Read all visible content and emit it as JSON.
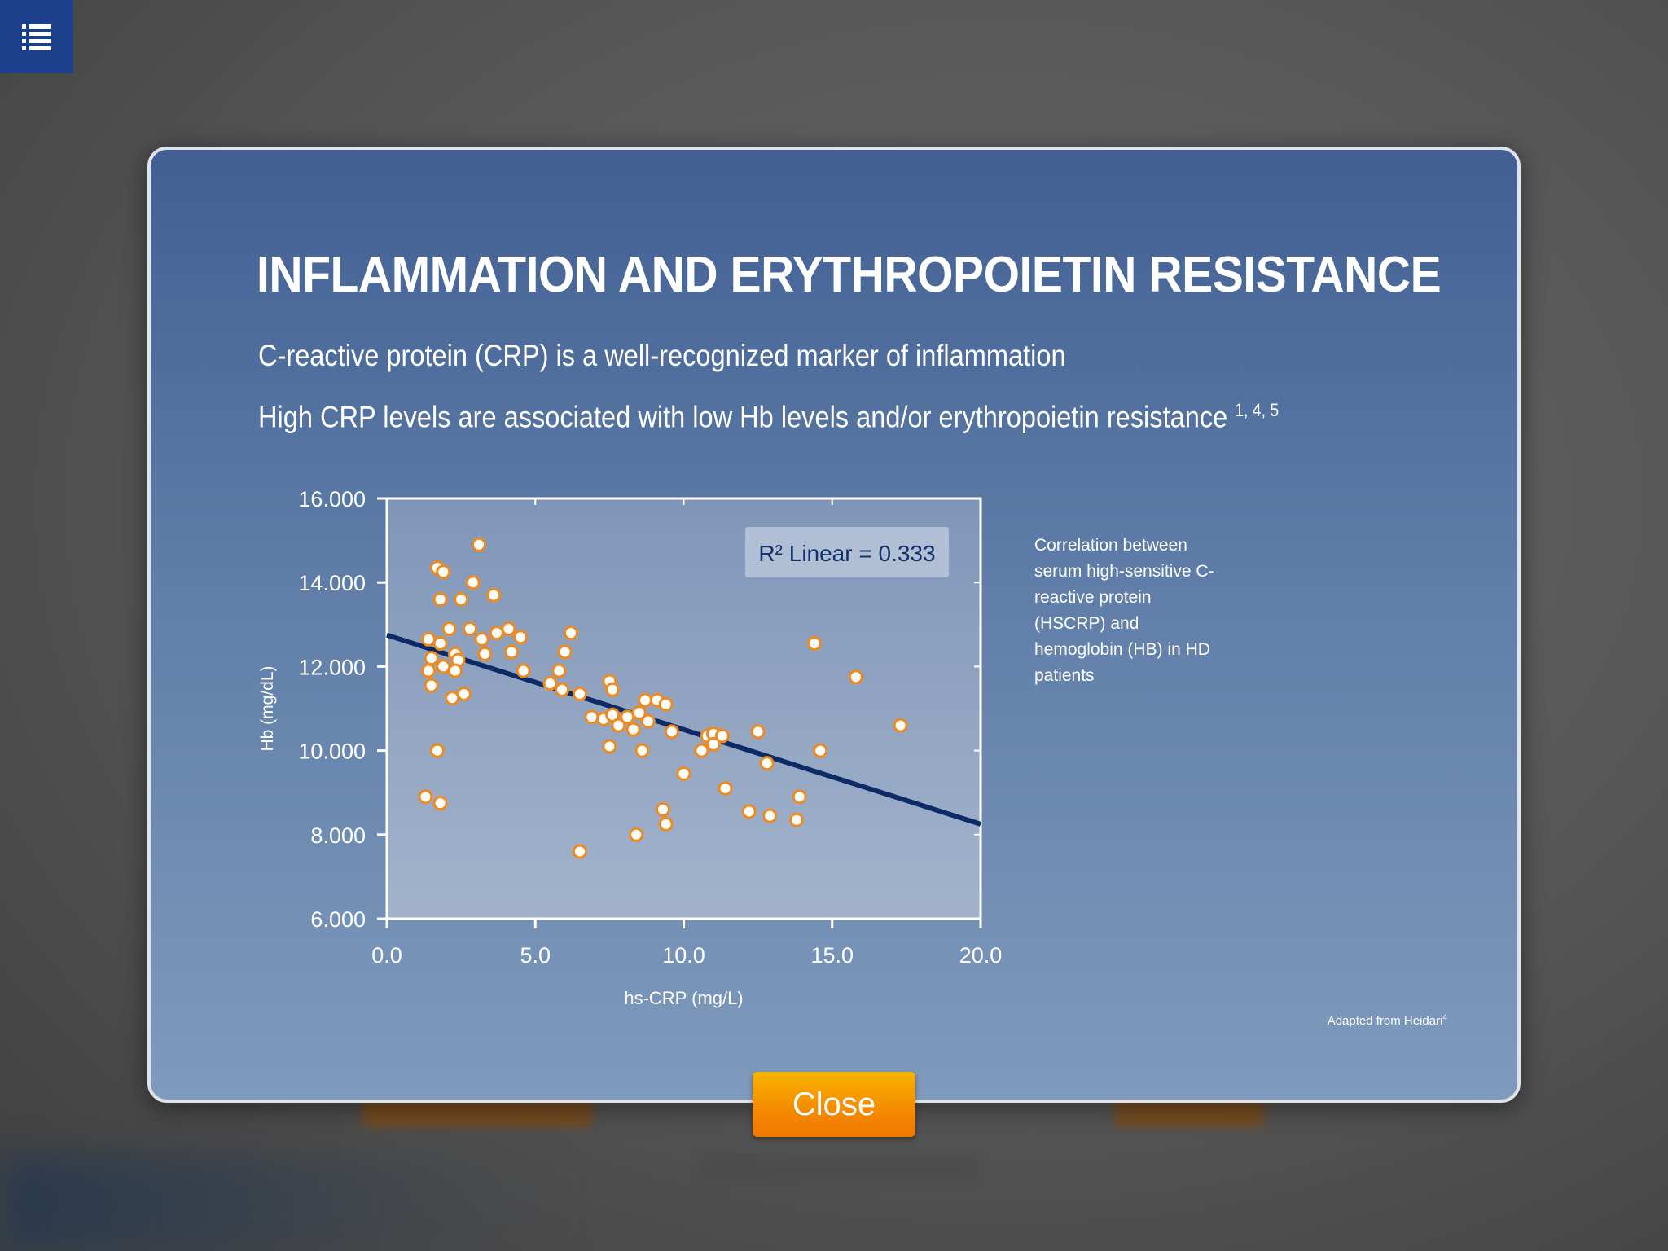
{
  "menu": {
    "icon": "list-menu-icon"
  },
  "modal": {
    "title": "INFLAMMATION AND ERYTHROPOIETIN RESISTANCE",
    "line1": "C-reactive protein (CRP) is a well-recognized marker of inflammation",
    "line2": "High CRP levels are associated with low Hb levels and/or erythropoietin resistance",
    "line2_refs": "1, 4, 5",
    "caption": "Correlation between serum high-sensitive C-reactive protein (HSCRP) and hemoglobin (HB) in HD patients",
    "source_note": "Adapted from Heidari",
    "source_ref": "4",
    "close_label": "Close"
  },
  "colors": {
    "accent_orange": "#f58a00",
    "marker_fill": "#ffffff",
    "marker_stroke": "#f08a1e",
    "regression_line": "#0b2a66"
  },
  "chart_data": {
    "type": "scatter",
    "xlabel": "hs-CRP (mg/L)",
    "ylabel": "Hb (mg/dL)",
    "xlim": [
      0,
      20
    ],
    "ylim": [
      6,
      16
    ],
    "x_ticks": [
      "0.0",
      "5.0",
      "10.0",
      "15.0",
      "20.0"
    ],
    "y_ticks": [
      "6.000",
      "8.000",
      "10.000",
      "12.000",
      "14.000",
      "16.000"
    ],
    "annotation": "R² Linear = 0.333",
    "regression": {
      "x": [
        0,
        20
      ],
      "y": [
        12.75,
        8.25
      ]
    },
    "points": [
      [
        1.7,
        14.35
      ],
      [
        1.9,
        14.25
      ],
      [
        3.1,
        14.9
      ],
      [
        2.9,
        14.0
      ],
      [
        2.5,
        13.6
      ],
      [
        1.8,
        13.6
      ],
      [
        3.6,
        13.7
      ],
      [
        1.4,
        12.65
      ],
      [
        1.8,
        12.55
      ],
      [
        2.1,
        12.9
      ],
      [
        2.8,
        12.9
      ],
      [
        3.2,
        12.65
      ],
      [
        3.7,
        12.8
      ],
      [
        4.1,
        12.9
      ],
      [
        4.5,
        12.7
      ],
      [
        6.2,
        12.8
      ],
      [
        2.3,
        12.3
      ],
      [
        2.4,
        12.15
      ],
      [
        1.5,
        12.2
      ],
      [
        1.9,
        12.0
      ],
      [
        1.4,
        11.9
      ],
      [
        2.3,
        11.9
      ],
      [
        3.3,
        12.3
      ],
      [
        4.2,
        12.35
      ],
      [
        6.0,
        12.35
      ],
      [
        4.6,
        11.9
      ],
      [
        5.8,
        11.9
      ],
      [
        1.5,
        11.55
      ],
      [
        2.2,
        11.25
      ],
      [
        2.6,
        11.35
      ],
      [
        5.5,
        11.6
      ],
      [
        5.9,
        11.45
      ],
      [
        6.5,
        11.35
      ],
      [
        7.5,
        11.65
      ],
      [
        7.6,
        11.45
      ],
      [
        8.7,
        11.2
      ],
      [
        9.1,
        11.2
      ],
      [
        9.4,
        11.1
      ],
      [
        6.9,
        10.8
      ],
      [
        7.3,
        10.75
      ],
      [
        7.6,
        10.85
      ],
      [
        7.8,
        10.6
      ],
      [
        8.1,
        10.8
      ],
      [
        8.3,
        10.5
      ],
      [
        8.5,
        10.9
      ],
      [
        8.8,
        10.7
      ],
      [
        9.6,
        10.45
      ],
      [
        10.8,
        10.35
      ],
      [
        11.0,
        10.4
      ],
      [
        11.3,
        10.35
      ],
      [
        11.0,
        10.15
      ],
      [
        12.5,
        10.45
      ],
      [
        10.6,
        10.0
      ],
      [
        7.5,
        10.1
      ],
      [
        8.6,
        10.0
      ],
      [
        1.7,
        10.0
      ],
      [
        12.8,
        9.7
      ],
      [
        14.6,
        10.0
      ],
      [
        10.0,
        9.45
      ],
      [
        11.4,
        9.1
      ],
      [
        1.3,
        8.9
      ],
      [
        1.8,
        8.75
      ],
      [
        13.9,
        8.9
      ],
      [
        9.3,
        8.6
      ],
      [
        12.2,
        8.55
      ],
      [
        12.9,
        8.45
      ],
      [
        13.8,
        8.35
      ],
      [
        9.4,
        8.25
      ],
      [
        8.4,
        8.0
      ],
      [
        6.5,
        7.6
      ],
      [
        14.4,
        12.55
      ],
      [
        15.8,
        11.75
      ],
      [
        17.3,
        10.6
      ]
    ]
  }
}
